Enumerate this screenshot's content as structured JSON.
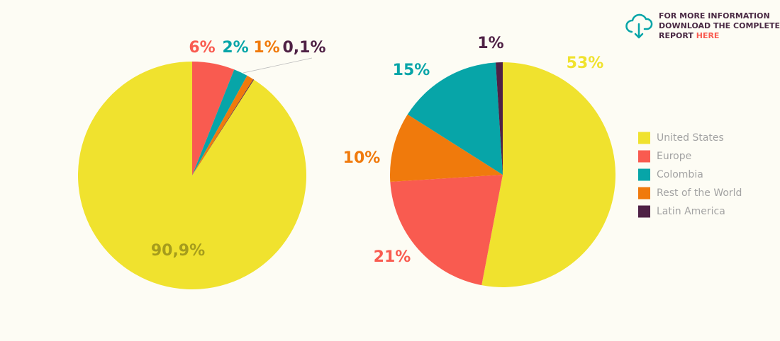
{
  "chart_data": [
    {
      "type": "pie",
      "values": [
        90.9,
        6,
        2,
        1,
        0.1
      ],
      "value_labels": [
        "90,9%",
        "6%",
        "2%",
        "1%",
        "0,1%"
      ],
      "colors": [
        "#f0e22e",
        "#f95b50",
        "#07a5a8",
        "#f07a0c",
        "#4f2145"
      ]
    },
    {
      "type": "pie",
      "categories": [
        "United States",
        "Europe",
        "Rest of the World",
        "Colombia",
        "Latin America"
      ],
      "values": [
        53,
        21,
        10,
        15,
        1
      ],
      "value_labels": [
        "53%",
        "21%",
        "10%",
        "15%",
        "1%"
      ],
      "colors": [
        "#f0e22e",
        "#f95b50",
        "#f07a0c",
        "#07a5a8",
        "#4f2145"
      ],
      "legend_order": [
        0,
        1,
        3,
        2,
        4
      ]
    }
  ],
  "info": {
    "lines": [
      "FOR MORE INFORMATION",
      "DOWNLOAD THE COMPLETE",
      "REPORT"
    ],
    "link": "HERE"
  }
}
